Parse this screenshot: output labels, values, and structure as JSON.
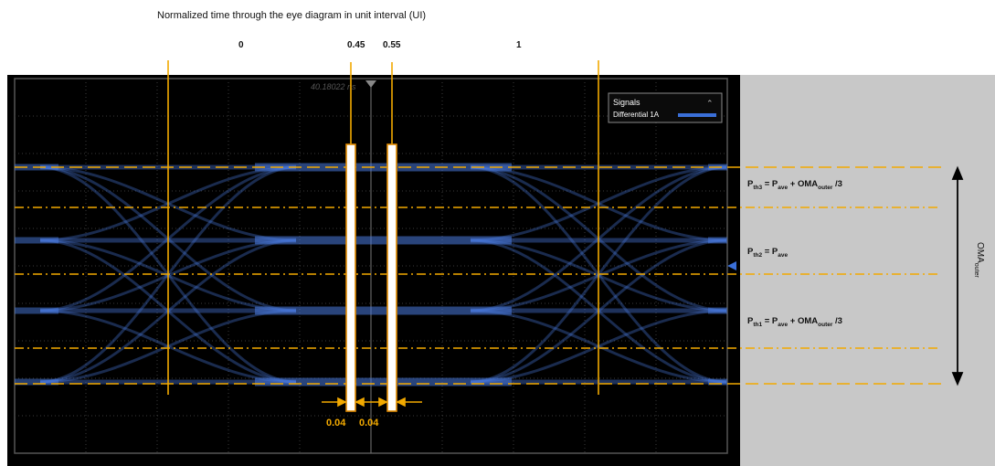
{
  "title": "Normalized time through the eye diagram in unit interval (UI)",
  "ui_ticks": [
    {
      "label": "0",
      "value": 0
    },
    {
      "label": "0.45",
      "value": 0.45
    },
    {
      "label": "0.55",
      "value": 0.55
    },
    {
      "label": "1",
      "value": 1
    }
  ],
  "scope": {
    "time_readout": "40.18022 ns",
    "legend": {
      "title": "Signals",
      "entry": "Differential 1A",
      "entry_color": "#3a6fd8"
    }
  },
  "window_width": "0.04",
  "thresholds": {
    "pth3": {
      "p": "P",
      "sub": "th3",
      "eq": " = P",
      "eq_sub": "ave",
      "rest": " + OMA",
      "rest_sub": "outer",
      "tail": " /3"
    },
    "pth2": {
      "p": "P",
      "sub": "th2",
      "eq": " = P",
      "eq_sub": "ave"
    },
    "pth1": {
      "p": "P",
      "sub": "th1",
      "eq": " = P",
      "eq_sub": "ave",
      "rest": " + OMA",
      "rest_sub": "outer",
      "tail": " /3"
    }
  },
  "oma": {
    "main": "OMA",
    "sub": "outer"
  },
  "colors": {
    "accent": "#f2a900",
    "screen": "#000000",
    "trace": "#4a7be0",
    "side_panel": "#c8c8c8"
  }
}
